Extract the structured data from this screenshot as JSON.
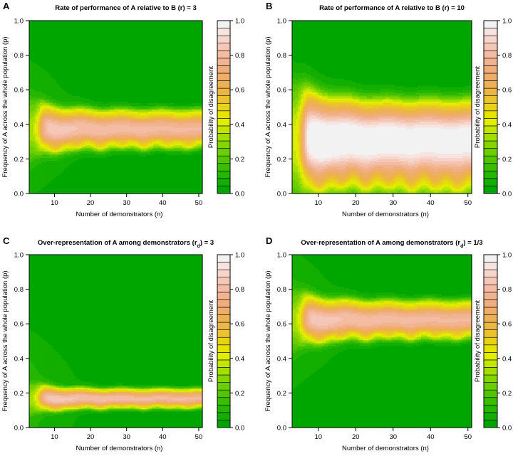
{
  "figure": {
    "colorbar_colors": [
      "#00a600",
      "#12ae00",
      "#25b600",
      "#3abe00",
      "#51c600",
      "#6ace00",
      "#85d600",
      "#a2de00",
      "#c1e600",
      "#e2ee00",
      "#e6e300",
      "#e8d217",
      "#eac32e",
      "#ebb742",
      "#edb055",
      "#eead69",
      "#f0ae7c",
      "#f1b390",
      "#f3bca3",
      "#f4c7b7",
      "#f6d5cb",
      "#f7e4e0",
      "#f2f2f2"
    ],
    "colorbar_ticks": [
      0.0,
      0.2,
      0.4,
      0.6,
      0.8,
      1.0
    ],
    "colorbar_tick_labels": [
      "0.0",
      "0.2",
      "0.4",
      "0.6",
      "0.8",
      "1.0"
    ],
    "colorbar_label": "Probability of disagreement"
  },
  "chart_data": [
    {
      "type": "heatmap",
      "panel_letter": "A",
      "title": "Rate of performance of A relative to B (r) = 3",
      "xlabel": "Number of demonstrators (n)",
      "ylabel": "Frequency of A across the whole population (p)",
      "xlim": [
        3,
        51
      ],
      "ylim": [
        0,
        1
      ],
      "x_ticks": [
        10,
        20,
        30,
        40,
        50
      ],
      "x_tick_labels": [
        "10",
        "20",
        "30",
        "40",
        "50"
      ],
      "y_ticks": [
        0,
        0.2,
        0.4,
        0.6,
        0.8,
        1.0
      ],
      "y_tick_labels": [
        "0.0",
        "0.2",
        "0.4",
        "0.6",
        "0.8",
        "1.0"
      ],
      "colorbar_label": "Probability of disagreement",
      "band": {
        "center": 0.375,
        "half_width_asymptote": 0.095,
        "peak": 0.78,
        "onset_n": 6,
        "oscillation_amp": 0.028,
        "widen_start": 0.0
      }
    },
    {
      "type": "heatmap",
      "panel_letter": "B",
      "title": "Rate of performance of A relative to B (r) = 10",
      "xlabel": "Number of demonstrators (n)",
      "ylabel": "Frequency of A across the whole population (p)",
      "xlim": [
        3,
        51
      ],
      "ylim": [
        0,
        1
      ],
      "x_ticks": [
        10,
        20,
        30,
        40,
        50
      ],
      "x_tick_labels": [
        "10",
        "20",
        "30",
        "40",
        "50"
      ],
      "y_ticks": [
        0,
        0.2,
        0.4,
        0.6,
        0.8,
        1.0
      ],
      "y_tick_labels": [
        "0.0",
        "0.2",
        "0.4",
        "0.6",
        "0.8",
        "1.0"
      ],
      "colorbar_label": "Probability of disagreement",
      "band": {
        "center": 0.32,
        "half_width_asymptote": 0.19,
        "peak": 1.0,
        "onset_n": 6,
        "oscillation_amp": 0.03,
        "widen_start": 0.08
      }
    },
    {
      "type": "heatmap",
      "panel_letter": "C",
      "title": "Over-representation of A among demonstrators (r_d) = 3",
      "xlabel": "Number of demonstrators (n)",
      "ylabel": "Frequency of A across the whole population (p)",
      "xlim": [
        3,
        51
      ],
      "ylim": [
        0,
        1
      ],
      "x_ticks": [
        10,
        20,
        30,
        40,
        50
      ],
      "x_tick_labels": [
        "10",
        "20",
        "30",
        "40",
        "50"
      ],
      "y_ticks": [
        0,
        0.2,
        0.4,
        0.6,
        0.8,
        1.0
      ],
      "y_tick_labels": [
        "0.0",
        "0.2",
        "0.4",
        "0.6",
        "0.8",
        "1.0"
      ],
      "colorbar_label": "Probability of disagreement",
      "band": {
        "center": 0.17,
        "half_width_asymptote": 0.05,
        "peak": 0.78,
        "onset_n": 6,
        "oscillation_amp": 0.018,
        "widen_start": 0.0
      }
    },
    {
      "type": "heatmap",
      "panel_letter": "D",
      "title": "Over-representation of A among demonstrators (r_d) = 1/3",
      "xlabel": "Number of demonstrators (n)",
      "ylabel": "Frequency of A across the whole population (p)",
      "xlim": [
        3,
        51
      ],
      "ylim": [
        0,
        1
      ],
      "x_ticks": [
        10,
        20,
        30,
        40,
        50
      ],
      "x_tick_labels": [
        "10",
        "20",
        "30",
        "40",
        "50"
      ],
      "y_ticks": [
        0,
        0.2,
        0.4,
        0.6,
        0.8,
        1.0
      ],
      "y_tick_labels": [
        "0.0",
        "0.2",
        "0.4",
        "0.6",
        "0.8",
        "1.0"
      ],
      "colorbar_label": "Probability of disagreement",
      "band": {
        "center": 0.625,
        "half_width_asymptote": 0.095,
        "peak": 0.78,
        "onset_n": 6,
        "oscillation_amp": 0.028,
        "widen_start": 0.0
      }
    }
  ]
}
